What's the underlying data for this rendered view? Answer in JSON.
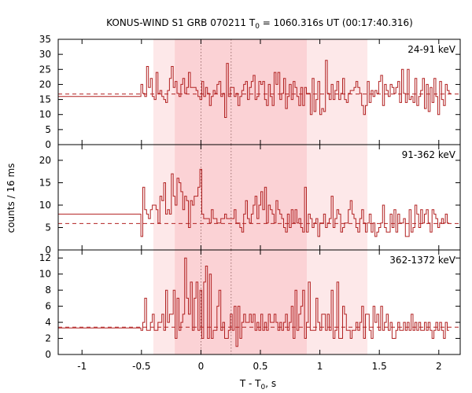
{
  "chart_data": {
    "type": "line",
    "title": {
      "prefix": "KONUS-WIND S1 GRB 070211 T",
      "sub": "0",
      "suffix": " = 1060.316s UT (00:17:40.316)"
    },
    "ylabel": "counts / 16 ms",
    "xlabel": {
      "prefix": "T - T",
      "sub": "0",
      "suffix": ", s"
    },
    "xlim": [
      -1.2,
      2.18
    ],
    "x_ticks": [
      -1,
      -0.5,
      0,
      0.5,
      1,
      1.5,
      2
    ],
    "x_tick_labels": [
      "-1",
      "-0.5",
      "0",
      "0.5",
      "1",
      "1.5",
      "2"
    ],
    "intervals": {
      "outer": [
        -0.4,
        1.4
      ],
      "inner": [
        -0.22,
        0.89
      ]
    },
    "vlines": [
      0,
      0.254
    ],
    "colors": {
      "line": "#b22222",
      "outer_fill": "#fde8e9",
      "inner_fill": "#fbd2d5"
    },
    "panels": [
      {
        "name": "24-91 keV",
        "ylim": [
          0,
          35
        ],
        "y_ticks": [
          0,
          5,
          10,
          15,
          20,
          25,
          30,
          35
        ],
        "y_tick_labels": [
          "0",
          "5",
          "10",
          "15",
          "20",
          "25",
          "30",
          "35"
        ],
        "background": 16.8,
        "pre_level": 16,
        "pre_end": -0.505,
        "bin_width": 0.016,
        "counts": [
          20,
          17,
          16,
          26,
          19,
          22,
          16,
          15,
          24,
          17,
          18,
          16,
          15,
          14,
          18,
          22,
          26,
          19,
          21,
          17,
          16,
          20,
          22,
          17,
          19,
          24,
          19,
          19,
          19,
          18,
          16,
          15,
          21,
          16,
          19,
          17,
          13,
          16,
          18,
          17,
          20,
          21,
          16,
          17,
          9,
          27,
          16,
          19,
          19,
          16,
          17,
          13,
          16,
          18,
          20,
          21,
          15,
          19,
          21,
          23,
          15,
          16,
          21,
          20,
          21,
          15,
          13,
          20,
          16,
          13,
          24,
          20,
          24,
          15,
          17,
          22,
          12,
          16,
          20,
          15,
          21,
          19,
          16,
          13,
          19,
          13,
          19,
          17,
          17,
          10,
          22,
          11,
          15,
          21,
          10,
          12,
          11,
          28,
          17,
          15,
          20,
          15,
          18,
          21,
          15,
          17,
          22,
          15,
          14,
          17,
          18,
          18,
          19,
          21,
          19,
          17,
          13,
          10,
          13,
          21,
          14,
          18,
          16,
          18,
          17,
          21,
          23,
          13,
          20,
          18,
          16,
          20,
          19,
          17,
          19,
          21,
          14,
          25,
          17,
          14,
          25,
          15,
          16,
          14,
          22,
          13,
          16,
          18,
          22,
          12,
          20,
          11,
          19,
          14,
          22,
          16,
          10,
          21,
          15,
          13,
          20,
          18,
          17
        ]
      },
      {
        "name": "91-362 keV",
        "ylim": [
          0,
          23.5
        ],
        "y_ticks": [
          0,
          5,
          10,
          15,
          20
        ],
        "y_tick_labels": [
          "0",
          "5",
          "10",
          "15",
          "20"
        ],
        "background": 5.9,
        "pre_level": 8,
        "pre_end": -0.505,
        "bin_width": 0.016,
        "counts": [
          3,
          14,
          9,
          8,
          7,
          9,
          10,
          10,
          9,
          6,
          12,
          11,
          15,
          8,
          9,
          8,
          17,
          12,
          10,
          16,
          15,
          13,
          9,
          12,
          11,
          5,
          11,
          10,
          12,
          12,
          14,
          18,
          8,
          7,
          7,
          7,
          6,
          9,
          7,
          7,
          6,
          6,
          7,
          7,
          8,
          7,
          7,
          7,
          7,
          9,
          6,
          6,
          5,
          4,
          8,
          11,
          7,
          6,
          8,
          10,
          12,
          7,
          10,
          13,
          9,
          14,
          6,
          10,
          9,
          8,
          6,
          11,
          9,
          8,
          7,
          5,
          4,
          8,
          5,
          9,
          6,
          9,
          6,
          7,
          5,
          4,
          14,
          4,
          8,
          7,
          5,
          6,
          7,
          3,
          6,
          6,
          8,
          5,
          6,
          7,
          12,
          5,
          7,
          9,
          8,
          4,
          5,
          6,
          6,
          9,
          11,
          8,
          7,
          5,
          4,
          7,
          9,
          6,
          4,
          6,
          8,
          4,
          6,
          3,
          4,
          5,
          6,
          10,
          5,
          4,
          4,
          8,
          5,
          9,
          4,
          8,
          6,
          6,
          7,
          3,
          3,
          9,
          4,
          5,
          10,
          8,
          5,
          9,
          6,
          8,
          9,
          6,
          4,
          9,
          8,
          7,
          5,
          6,
          7,
          6,
          8,
          6
        ]
      },
      {
        "name": "362-1372 keV",
        "ylim": [
          0,
          13
        ],
        "y_ticks": [
          0,
          2,
          4,
          6,
          8,
          10,
          12
        ],
        "y_tick_labels": [
          "0",
          "2",
          "4",
          "6",
          "8",
          "10",
          "12"
        ],
        "background": 3.4,
        "pre_level": 3.3,
        "pre_end": -0.505,
        "bin_width": 0.016,
        "counts": [
          3,
          4,
          7,
          3,
          3,
          4,
          5,
          3,
          3,
          4,
          4,
          5,
          3,
          8,
          4,
          5,
          5,
          8,
          2,
          7,
          3,
          4,
          5,
          12,
          7,
          5,
          9,
          3,
          7,
          9,
          3,
          8,
          2,
          9,
          11,
          2,
          10,
          2,
          3,
          3,
          6,
          8,
          3,
          4,
          2,
          2,
          3,
          5,
          3,
          6,
          1,
          6,
          2,
          4,
          5,
          4,
          4,
          5,
          4,
          5,
          3,
          4,
          3,
          5,
          3,
          4,
          3,
          5,
          4,
          4,
          5,
          4,
          3,
          4,
          3,
          4,
          5,
          3,
          4,
          6,
          2,
          8,
          3,
          5,
          6,
          8,
          2,
          4,
          9,
          3,
          3,
          3,
          7,
          4,
          3,
          5,
          5,
          3,
          5,
          3,
          8,
          2,
          3,
          9,
          2,
          2,
          6,
          5,
          3,
          3,
          2,
          3,
          3,
          4,
          3,
          4,
          6,
          2,
          5,
          5,
          3,
          2,
          6,
          4,
          5,
          3,
          6,
          3,
          4,
          5,
          3,
          4,
          2,
          2,
          3,
          4,
          3,
          3,
          4,
          3,
          4,
          3,
          5,
          3,
          4,
          3,
          4,
          3,
          3,
          4,
          3,
          4,
          3,
          2,
          3,
          4,
          3,
          4,
          3,
          2,
          4,
          3
        ]
      }
    ]
  }
}
